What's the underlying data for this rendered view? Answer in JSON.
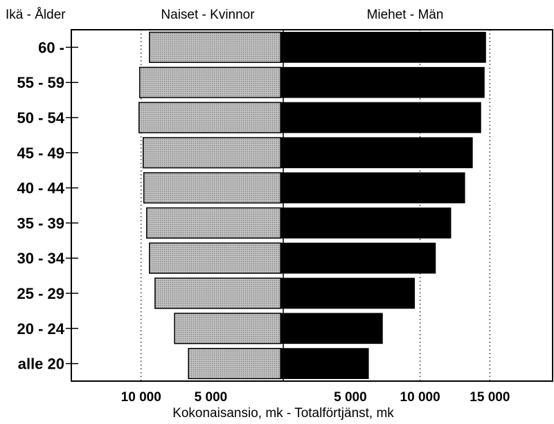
{
  "chart_data": {
    "type": "bar",
    "orientation": "horizontal-diverging",
    "header_left": "Ikä - Ålder",
    "xlabel": "Kokonaisansio, mk - Totalförtjänst, mk",
    "categories": [
      "60 -",
      "55 - 59",
      "50 - 54",
      "45 - 49",
      "40 - 44",
      "35 - 39",
      "30 - 34",
      "25 - 29",
      "20 - 24",
      "alle 20"
    ],
    "series": [
      {
        "name": "Naiset - Kvinnor",
        "side": "left",
        "color": "#b5b5b5",
        "values": [
          9400,
          10100,
          10150,
          9850,
          9800,
          9600,
          9400,
          9000,
          7600,
          6600
        ]
      },
      {
        "name": "Miehet - Män",
        "side": "right",
        "color": "#000000",
        "values": [
          14700,
          14600,
          14350,
          13750,
          13200,
          12200,
          11100,
          9600,
          7300,
          6300
        ]
      }
    ],
    "left_ticks": [
      {
        "value": 10000,
        "label": "10 000"
      },
      {
        "value": 5000,
        "label": "5 000"
      }
    ],
    "right_ticks": [
      {
        "value": 5000,
        "label": "5 000"
      },
      {
        "value": 10000,
        "label": "10 000"
      },
      {
        "value": 15000,
        "label": "15 000"
      }
    ],
    "grid_values": [
      10000,
      15000
    ],
    "xlim": [
      -15000,
      19500
    ],
    "grid": "dotted"
  }
}
